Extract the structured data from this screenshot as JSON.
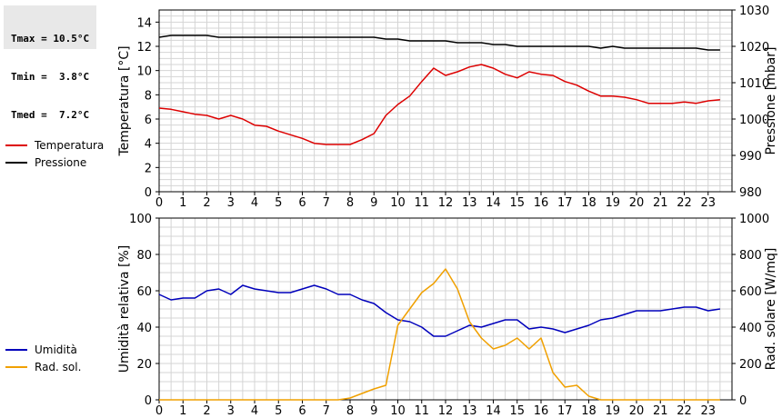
{
  "stats": {
    "tmax": "Tmax = 10.5°C",
    "tmin": "Tmin =  3.8°C",
    "tmed": "Tmed =  7.2°C"
  },
  "chart_data": [
    {
      "type": "line",
      "x": [
        0,
        0.5,
        1,
        1.5,
        2,
        2.5,
        3,
        3.5,
        4,
        4.5,
        5,
        5.5,
        6,
        6.5,
        7,
        7.5,
        8,
        8.5,
        9,
        9.5,
        10,
        10.5,
        11,
        11.5,
        12,
        12.5,
        13,
        13.5,
        14,
        14.5,
        15,
        15.5,
        16,
        16.5,
        17,
        17.5,
        18,
        18.5,
        19,
        19.5,
        20,
        20.5,
        21,
        21.5,
        22,
        22.5,
        23,
        23.5
      ],
      "xlim": [
        0,
        24
      ],
      "xticks": [
        "0",
        "1",
        "2",
        "3",
        "4",
        "5",
        "6",
        "7",
        "8",
        "9",
        "10",
        "11",
        "12",
        "13",
        "14",
        "15",
        "16",
        "17",
        "18",
        "19",
        "20",
        "21",
        "22",
        "23"
      ],
      "ylabel": "Temperatura [°C]",
      "ylim": [
        0,
        15
      ],
      "yticks": [
        "0",
        "2",
        "4",
        "6",
        "8",
        "10",
        "12",
        "14"
      ],
      "y2label": "Pressione [mbar]",
      "y2lim": [
        980,
        1030
      ],
      "y2ticks": [
        "980",
        "990",
        "1000",
        "1010",
        "1020",
        "1030"
      ],
      "grid": true,
      "legend_position": "left",
      "series": [
        {
          "name": "Temperatura",
          "axis": "left",
          "color": "#dd0000",
          "values": [
            6.9,
            6.8,
            6.6,
            6.4,
            6.3,
            6.0,
            6.3,
            6.0,
            5.5,
            5.4,
            5.0,
            4.7,
            4.4,
            4.0,
            3.9,
            3.9,
            3.9,
            4.3,
            4.8,
            6.3,
            7.2,
            7.9,
            9.1,
            10.2,
            9.6,
            9.9,
            10.3,
            10.5,
            10.2,
            9.7,
            9.4,
            9.9,
            9.7,
            9.6,
            9.1,
            8.8,
            8.3,
            7.9,
            7.9,
            7.8,
            7.6,
            7.3,
            7.3,
            7.3,
            7.4,
            7.3,
            7.5,
            7.6
          ]
        },
        {
          "name": "Pressione",
          "axis": "right",
          "color": "#000000",
          "values": [
            1022.5,
            1023,
            1023,
            1023,
            1023,
            1022.5,
            1022.5,
            1022.5,
            1022.5,
            1022.5,
            1022.5,
            1022.5,
            1022.5,
            1022.5,
            1022.5,
            1022.5,
            1022.5,
            1022.5,
            1022.5,
            1022,
            1022,
            1021.5,
            1021.5,
            1021.5,
            1021.5,
            1021,
            1021,
            1021,
            1020.5,
            1020.5,
            1020,
            1020,
            1020,
            1020,
            1020,
            1020,
            1020,
            1019.5,
            1020,
            1019.5,
            1019.5,
            1019.5,
            1019.5,
            1019.5,
            1019.5,
            1019.5,
            1019,
            1019
          ]
        }
      ]
    },
    {
      "type": "line",
      "x": [
        0,
        0.5,
        1,
        1.5,
        2,
        2.5,
        3,
        3.5,
        4,
        4.5,
        5,
        5.5,
        6,
        6.5,
        7,
        7.5,
        8,
        8.5,
        9,
        9.5,
        10,
        10.5,
        11,
        11.5,
        12,
        12.5,
        13,
        13.5,
        14,
        14.5,
        15,
        15.5,
        16,
        16.5,
        17,
        17.5,
        18,
        18.5,
        19,
        19.5,
        20,
        20.5,
        21,
        21.5,
        22,
        22.5,
        23,
        23.5
      ],
      "xlim": [
        0,
        24
      ],
      "xticks": [
        "0",
        "1",
        "2",
        "3",
        "4",
        "5",
        "6",
        "7",
        "8",
        "9",
        "10",
        "11",
        "12",
        "13",
        "14",
        "15",
        "16",
        "17",
        "18",
        "19",
        "20",
        "21",
        "22",
        "23"
      ],
      "ylabel": "Umidità relativa [%]",
      "ylim": [
        0,
        100
      ],
      "yticks": [
        "0",
        "20",
        "40",
        "60",
        "80",
        "100"
      ],
      "y2label": "Rad. solare [W/mq]",
      "y2lim": [
        0,
        1000
      ],
      "y2ticks": [
        "0",
        "200",
        "400",
        "600",
        "800",
        "1000"
      ],
      "grid": true,
      "legend_position": "left",
      "series": [
        {
          "name": "Umidità",
          "axis": "left",
          "color": "#0000bb",
          "values": [
            58,
            55,
            56,
            56,
            60,
            61,
            58,
            63,
            61,
            60,
            59,
            59,
            61,
            63,
            61,
            58,
            58,
            55,
            53,
            48,
            44,
            43,
            40,
            35,
            35,
            38,
            41,
            40,
            42,
            44,
            44,
            39,
            40,
            39,
            37,
            39,
            41,
            44,
            45,
            47,
            49,
            49,
            49,
            50,
            51,
            51,
            49,
            50
          ]
        },
        {
          "name": "Rad. sol.",
          "axis": "right",
          "color": "#f0a000",
          "values": [
            0,
            0,
            0,
            0,
            0,
            0,
            0,
            0,
            0,
            0,
            0,
            0,
            0,
            0,
            0,
            0,
            10,
            35,
            60,
            80,
            410,
            500,
            590,
            640,
            720,
            610,
            430,
            340,
            280,
            300,
            340,
            280,
            340,
            150,
            70,
            80,
            20,
            0,
            0,
            0,
            0,
            0,
            0,
            0,
            0,
            0,
            0,
            0
          ]
        }
      ]
    }
  ]
}
